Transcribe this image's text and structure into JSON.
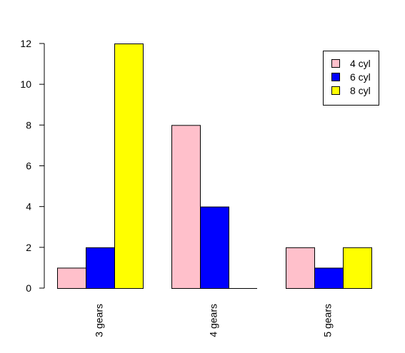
{
  "chart_data": {
    "type": "bar",
    "categories": [
      "3 gears",
      "4 gears",
      "5 gears"
    ],
    "series": [
      {
        "name": "4 cyl",
        "color": "#FFC0CB",
        "values": [
          1,
          8,
          2
        ]
      },
      {
        "name": "6 cyl",
        "color": "#0000FF",
        "values": [
          2,
          4,
          1
        ]
      },
      {
        "name": "8 cyl",
        "color": "#FFFF00",
        "values": [
          12,
          0,
          2
        ]
      }
    ],
    "ylim": [
      0,
      12
    ],
    "yticks": [
      0,
      2,
      4,
      6,
      8,
      10,
      12
    ],
    "title": "",
    "xlabel": "",
    "ylabel": "",
    "legend_position": "top-right",
    "grid": false
  }
}
